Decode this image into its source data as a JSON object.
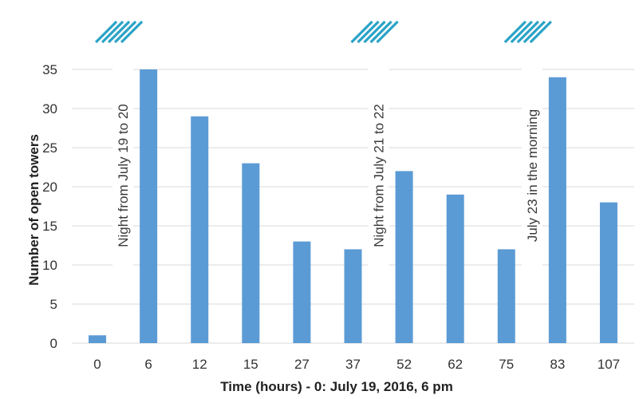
{
  "chart_data": {
    "type": "bar",
    "title": "",
    "xlabel": "Time (hours) - 0: July 19, 2016, 6 pm",
    "ylabel": "Number of open towers",
    "categories": [
      "0",
      "6",
      "12",
      "15",
      "27",
      "37",
      "52",
      "62",
      "75",
      "83",
      "107"
    ],
    "values": [
      1,
      35,
      29,
      23,
      13,
      12,
      22,
      19,
      12,
      34,
      18
    ],
    "ylim": [
      0,
      35
    ],
    "yticks": [
      0,
      5,
      10,
      15,
      20,
      25,
      30,
      35
    ],
    "grid": true,
    "bar_color": "#5b9bd5",
    "hatch_color": "#2aa3c7",
    "annotations": [
      {
        "text": "Night from July 19 to 20",
        "after_category": 0
      },
      {
        "text": "Night from July 21 to 22",
        "after_category": 5
      },
      {
        "text": "July 23 in the morning",
        "after_category": 8
      }
    ]
  }
}
